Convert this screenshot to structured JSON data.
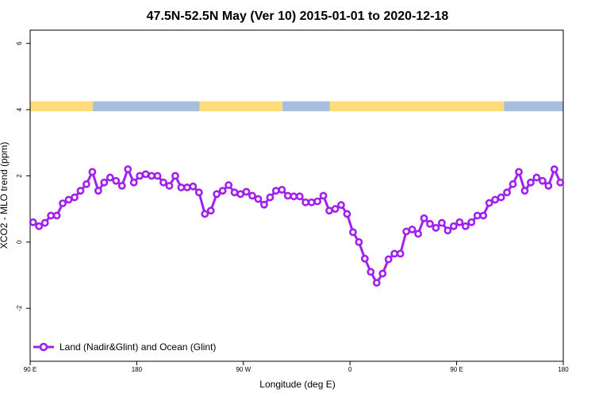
{
  "chart_data": {
    "type": "line",
    "title": "47.5N-52.5N May (Ver 10)   2015-01-01 to 2020-12-18",
    "xlabel": "Longitude (deg E)",
    "ylabel": "XCO2 - MLO trend (ppm)",
    "xlim": [
      90,
      540
    ],
    "ylim": [
      -3.6,
      6.4
    ],
    "x_ticks": [
      {
        "value": 90,
        "label": "90 E"
      },
      {
        "value": 180,
        "label": "180"
      },
      {
        "value": 270,
        "label": "90 W"
      },
      {
        "value": 360,
        "label": "0"
      },
      {
        "value": 450,
        "label": "90 E"
      },
      {
        "value": 540,
        "label": "180"
      }
    ],
    "y_ticks": [
      {
        "value": -2,
        "label": "-2"
      },
      {
        "value": 0,
        "label": "0"
      },
      {
        "value": 2,
        "label": "2"
      },
      {
        "value": 4,
        "label": "4"
      },
      {
        "value": 6,
        "label": "6"
      }
    ],
    "land_mask": {
      "y_range": [
        3.95,
        4.25
      ],
      "land_color": "#FFDC7A",
      "ocean_color": "#A8BEDF",
      "segments": [
        {
          "type": "land",
          "x": [
            90,
            143
          ]
        },
        {
          "type": "ocean",
          "x": [
            143,
            233
          ]
        },
        {
          "type": "land",
          "x": [
            233,
            303
          ]
        },
        {
          "type": "ocean",
          "x": [
            303,
            343
          ]
        },
        {
          "type": "land",
          "x": [
            343,
            490
          ]
        },
        {
          "type": "ocean",
          "x": [
            490,
            540
          ]
        }
      ]
    },
    "series": [
      {
        "name": "Land (Nadir&Glint) and Ocean (Glint)",
        "color": "#A020F0",
        "marker": "open-circle",
        "x": [
          92.5,
          97.5,
          102.5,
          107.5,
          112.5,
          117.5,
          122.5,
          127.5,
          132.5,
          137.5,
          142.5,
          147.5,
          152.5,
          157.5,
          162.5,
          167.5,
          172.5,
          177.5,
          182.5,
          187.5,
          192.5,
          197.5,
          202.5,
          207.5,
          212.5,
          217.5,
          222.5,
          227.5,
          232.5,
          237.5,
          242.5,
          247.5,
          252.5,
          257.5,
          262.5,
          267.5,
          272.5,
          277.5,
          282.5,
          287.5,
          292.5,
          297.5,
          302.5,
          307.5,
          312.5,
          317.5,
          322.5,
          327.5,
          332.5,
          337.5,
          342.5,
          347.5,
          352.5,
          357.5,
          362.5,
          367.5,
          372.5,
          377.5,
          382.5,
          387.5,
          392.5,
          397.5,
          402.5,
          407.5,
          412.5,
          417.5,
          422.5,
          427.5,
          432.5,
          437.5,
          442.5,
          447.5,
          452.5,
          457.5,
          462.5,
          467.5,
          472.5,
          477.5,
          482.5,
          487.5,
          492.5,
          497.5,
          502.5,
          507.5,
          512.5,
          517.5,
          522.5,
          527.5,
          532.5,
          537.5
        ],
        "values": [
          0.6,
          0.48,
          0.58,
          0.8,
          0.8,
          1.17,
          1.28,
          1.35,
          1.55,
          1.75,
          2.12,
          1.55,
          1.8,
          1.95,
          1.85,
          1.7,
          2.2,
          1.8,
          2.0,
          2.05,
          2.0,
          2.0,
          1.8,
          1.7,
          2.0,
          1.65,
          1.65,
          1.68,
          1.5,
          0.85,
          0.95,
          1.45,
          1.55,
          1.72,
          1.5,
          1.45,
          1.52,
          1.4,
          1.3,
          1.13,
          1.35,
          1.55,
          1.58,
          1.4,
          1.38,
          1.38,
          1.2,
          1.2,
          1.23,
          1.4,
          0.95,
          1.0,
          1.12,
          0.85,
          0.3,
          0.0,
          -0.5,
          -0.9,
          -1.23,
          -0.95,
          -0.52,
          -0.35,
          -0.35,
          0.32,
          0.38,
          0.25,
          0.72,
          0.55,
          0.43,
          0.58,
          0.35,
          0.48,
          0.6,
          0.48,
          0.6,
          0.8,
          0.8,
          1.18,
          1.28,
          1.35,
          1.5,
          1.75,
          2.12,
          1.55,
          1.8,
          1.95,
          1.85,
          1.7,
          2.2,
          1.8
        ]
      }
    ],
    "legend": {
      "position": "bottom-left",
      "label": "Land (Nadir&Glint) and Ocean (Glint)"
    }
  }
}
